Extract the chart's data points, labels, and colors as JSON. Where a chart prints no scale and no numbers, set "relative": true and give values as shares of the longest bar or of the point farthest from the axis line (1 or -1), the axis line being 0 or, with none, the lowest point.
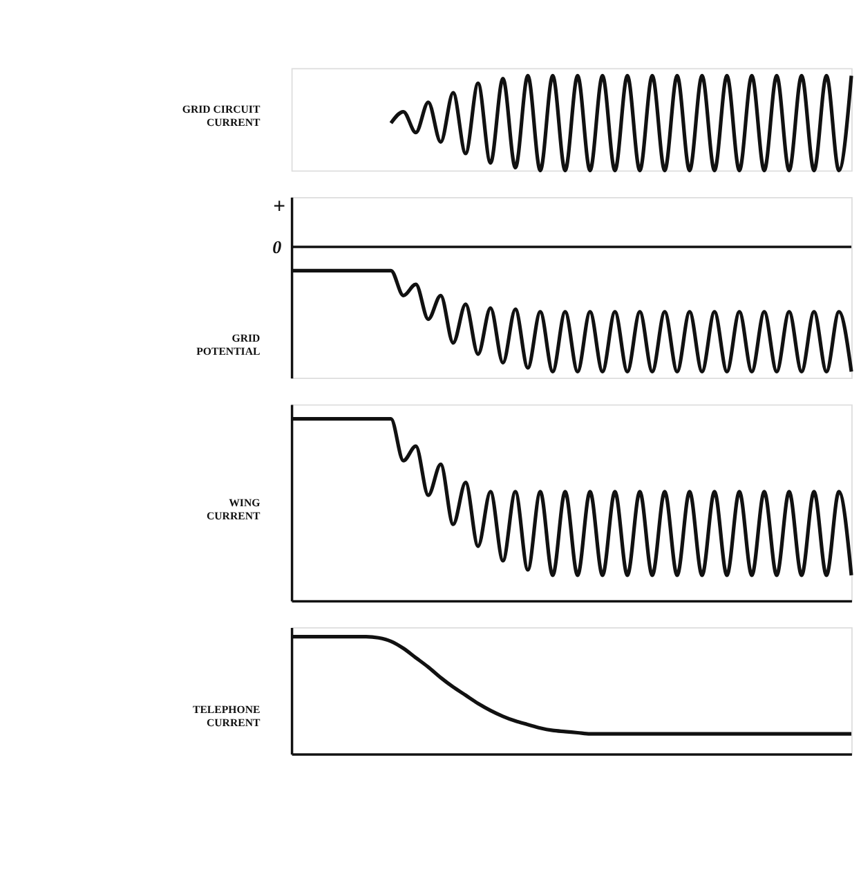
{
  "chart_data": [
    {
      "type": "line",
      "ylabel": "GRID CIRCUIT CURRENT",
      "relative": true,
      "marker": "none",
      "line_style": "solid",
      "categories": [
        null,
        null,
        null,
        null,
        null,
        null,
        null,
        null,
        null,
        null,
        null,
        null,
        null,
        null,
        null,
        null,
        null,
        null,
        null,
        null,
        null,
        null,
        null,
        null,
        null,
        null,
        null,
        null,
        null,
        null,
        null,
        null,
        null,
        null,
        null,
        null,
        null,
        null,
        null,
        null,
        null,
        null,
        null,
        null,
        null,
        null
      ],
      "series": [
        {
          "color": "#111111",
          "values": [
            null,
            null,
            null,
            null,
            null,
            null,
            null,
            null,
            0.5,
            0.62,
            0.4,
            0.72,
            0.3,
            0.82,
            0.18,
            0.92,
            0.08,
            0.97,
            0.03,
            1,
            0,
            1,
            0,
            1,
            0,
            1,
            0,
            1,
            0,
            1,
            0,
            1,
            0,
            1,
            0,
            1,
            0,
            1,
            0,
            1,
            0,
            1,
            0,
            1,
            0,
            1
          ]
        }
      ]
    },
    {
      "type": "line",
      "ylabel": "GRID POTENTIAL",
      "relative": true,
      "marker": "none",
      "line_style": "solid",
      "annotations": [
        "+"
      ],
      "ref_lines": [
        {
          "axis": "y",
          "value": 0,
          "label": "0"
        }
      ],
      "categories": [
        null,
        null,
        null,
        null,
        null,
        null,
        null,
        null,
        null,
        null,
        null,
        null,
        null,
        null,
        null,
        null,
        null,
        null,
        null,
        null,
        null,
        null,
        null,
        null,
        null,
        null,
        null,
        null,
        null,
        null,
        null,
        null,
        null,
        null,
        null,
        null,
        null,
        null,
        null,
        null,
        null,
        null,
        null,
        null,
        null,
        null
      ],
      "series": [
        {
          "color": "#111111",
          "values": [
            -0.19,
            -0.19,
            -0.19,
            -0.19,
            -0.19,
            -0.19,
            -0.19,
            -0.19,
            -0.19,
            -0.39,
            -0.3,
            -0.58,
            -0.39,
            -0.77,
            -0.46,
            -0.86,
            -0.49,
            -0.93,
            -0.5,
            -0.97,
            -0.52,
            -1,
            -0.52,
            -1,
            -0.52,
            -1,
            -0.52,
            -1,
            -0.52,
            -1,
            -0.52,
            -1,
            -0.52,
            -1,
            -0.52,
            -1,
            -0.52,
            -1,
            -0.52,
            -1,
            -0.52,
            -1,
            -0.52,
            -1,
            -0.52,
            -1
          ]
        }
      ]
    },
    {
      "type": "line",
      "ylabel": "WING CURRENT",
      "relative": true,
      "marker": "none",
      "line_style": "solid",
      "categories": [
        null,
        null,
        null,
        null,
        null,
        null,
        null,
        null,
        null,
        null,
        null,
        null,
        null,
        null,
        null,
        null,
        null,
        null,
        null,
        null,
        null,
        null,
        null,
        null,
        null,
        null,
        null,
        null,
        null,
        null,
        null,
        null,
        null,
        null,
        null,
        null,
        null,
        null,
        null,
        null,
        null,
        null,
        null,
        null,
        null,
        null
      ],
      "series": [
        {
          "color": "#111111",
          "values": [
            1,
            1,
            1,
            1,
            1,
            1,
            1,
            1,
            1,
            0.77,
            0.85,
            0.58,
            0.75,
            0.42,
            0.65,
            0.3,
            0.6,
            0.22,
            0.6,
            0.17,
            0.6,
            0.14,
            0.6,
            0.14,
            0.6,
            0.14,
            0.6,
            0.14,
            0.6,
            0.14,
            0.6,
            0.14,
            0.6,
            0.14,
            0.6,
            0.14,
            0.6,
            0.14,
            0.6,
            0.14,
            0.6,
            0.14,
            0.6,
            0.14,
            0.6,
            0.14
          ]
        }
      ]
    },
    {
      "type": "line",
      "ylabel": "TELEPHONE CURRENT",
      "relative": true,
      "marker": "none",
      "line_style": "solid",
      "categories": [
        null,
        null,
        null,
        null,
        null,
        null,
        null,
        null,
        null,
        null,
        null,
        null,
        null,
        null,
        null,
        null,
        null,
        null,
        null,
        null,
        null,
        null,
        null,
        null,
        null,
        null,
        null,
        null,
        null,
        null,
        null,
        null,
        null,
        null,
        null,
        null,
        null,
        null,
        null,
        null,
        null,
        null,
        null,
        null,
        null,
        null
      ],
      "series": [
        {
          "color": "#111111",
          "values": [
            1,
            1,
            1,
            1,
            1,
            1,
            1,
            0.99,
            0.96,
            0.9,
            0.82,
            0.74,
            0.65,
            0.57,
            0.5,
            0.43,
            0.37,
            0.32,
            0.28,
            0.25,
            0.22,
            0.2,
            0.19,
            0.18,
            0.17,
            0.17,
            0.17,
            0.17,
            0.17,
            0.17,
            0.17,
            0.17,
            0.17,
            0.17,
            0.17,
            0.17,
            0.17,
            0.17,
            0.17,
            0.17,
            0.17,
            0.17,
            0.17,
            0.17,
            0.17,
            0.17
          ]
        }
      ]
    }
  ]
}
